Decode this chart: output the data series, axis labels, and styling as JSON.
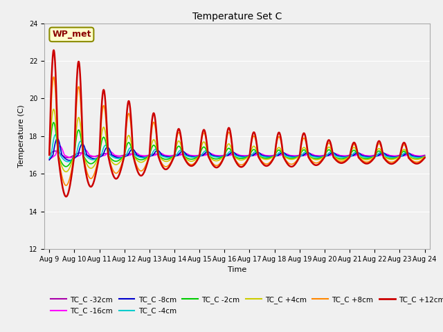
{
  "title": "Temperature Set C",
  "xlabel": "Time",
  "ylabel": "Temperature (C)",
  "ylim": [
    12,
    24
  ],
  "yticks": [
    12,
    14,
    16,
    18,
    20,
    22,
    24
  ],
  "bg_color": "#f0f0f0",
  "annotation_text": "WP_met",
  "annotation_color": "#8B0000",
  "annotation_bg": "#ffffcc",
  "annotation_edge": "#8B8B00",
  "series_colors": {
    "TC_C -32cm": "#aa00aa",
    "TC_C -16cm": "#ff00ff",
    "TC_C -8cm": "#0000cc",
    "TC_C -4cm": "#00cccc",
    "TC_C -2cm": "#00cc00",
    "TC_C +4cm": "#cccc00",
    "TC_C +8cm": "#ff8800",
    "TC_C +12cm": "#cc0000"
  },
  "xtick_labels": [
    "Aug 9",
    "Aug 10",
    "Aug 11",
    "Aug 12",
    "Aug 13",
    "Aug 14",
    "Aug 15",
    "Aug 16",
    "Aug 17",
    "Aug 18",
    "Aug 19",
    "Aug 20",
    "Aug 21",
    "Aug 22",
    "Aug 23",
    "Aug 24"
  ],
  "n_points": 1440,
  "days": 15
}
